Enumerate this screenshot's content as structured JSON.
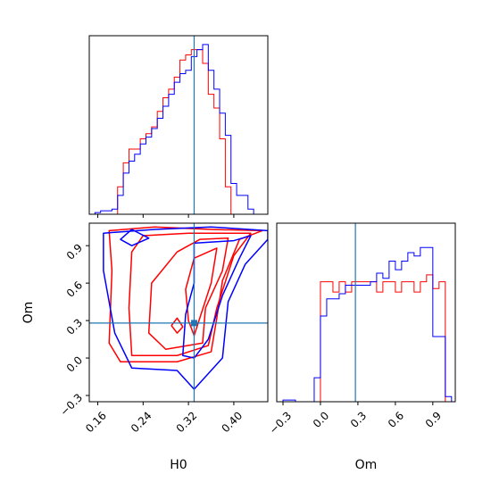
{
  "colors": {
    "series_a": "#ff0000",
    "series_b": "#0000ff",
    "truth": "#1f77b4",
    "frame": "#000000"
  },
  "chart_data": [
    {
      "type": "histogram",
      "panel": "H0 marginal",
      "position_in_grid": "top-left",
      "xlim": [
        0.145,
        0.46
      ],
      "y_ticks_shown": false,
      "truth": 0.33,
      "bin_edges": [
        0.145,
        0.155,
        0.165,
        0.175,
        0.185,
        0.195,
        0.205,
        0.215,
        0.225,
        0.235,
        0.245,
        0.255,
        0.265,
        0.275,
        0.285,
        0.295,
        0.305,
        0.315,
        0.325,
        0.335,
        0.345,
        0.355,
        0.365,
        0.375,
        0.385,
        0.395,
        0.405,
        0.415,
        0.425,
        0.435,
        0.445
      ],
      "series": [
        {
          "color_key": "series_a",
          "values": [
            0.0,
            0.0,
            0.0,
            0.0,
            0.0,
            0.16,
            0.3,
            0.38,
            0.38,
            0.44,
            0.47,
            0.51,
            0.6,
            0.68,
            0.73,
            0.8,
            0.9,
            0.93,
            0.96,
            0.96,
            0.88,
            0.7,
            0.62,
            0.44,
            0.16,
            0.0,
            0.0,
            0.0,
            0.0,
            0.0
          ]
        },
        {
          "color_key": "series_b",
          "values": [
            0.0,
            0.01,
            0.02,
            0.02,
            0.03,
            0.11,
            0.24,
            0.31,
            0.35,
            0.41,
            0.45,
            0.5,
            0.56,
            0.63,
            0.7,
            0.77,
            0.82,
            0.84,
            0.92,
            0.96,
            0.99,
            0.84,
            0.73,
            0.59,
            0.46,
            0.18,
            0.11,
            0.11,
            0.03,
            0.0
          ]
        }
      ],
      "x_tick_values": [
        0.16,
        0.24,
        0.32,
        0.4
      ],
      "x_tick_labels_shown": false
    },
    {
      "type": "contour",
      "panel": "H0 vs Om",
      "position_in_grid": "bottom-left",
      "xlabel": "H0",
      "ylabel": "Om",
      "xlim": [
        0.145,
        0.46
      ],
      "ylim": [
        -0.35,
        1.08
      ],
      "x_ticks": [
        "0.16",
        "0.24",
        "0.32",
        "0.40"
      ],
      "x_tick_values": [
        0.16,
        0.24,
        0.32,
        0.4
      ],
      "y_ticks": [
        "−0.3",
        "0.0",
        "0.3",
        "0.6",
        "0.9"
      ],
      "y_tick_values": [
        -0.3,
        0.0,
        0.3,
        0.6,
        0.9
      ],
      "truth": {
        "x": 0.33,
        "y": 0.28
      },
      "series": [
        {
          "color_key": "series_a",
          "contours": [
            [
              [
                0.18,
                1.02
              ],
              [
                0.26,
                1.05
              ],
              [
                0.36,
                1.03
              ],
              [
                0.45,
                1.02
              ],
              [
                0.41,
                0.95
              ],
              [
                0.38,
                0.62
              ],
              [
                0.37,
                0.32
              ],
              [
                0.36,
                0.05
              ],
              [
                0.3,
                -0.03
              ],
              [
                0.2,
                -0.03
              ],
              [
                0.18,
                0.12
              ],
              [
                0.185,
                0.7
              ],
              [
                0.18,
                1.02
              ]
            ],
            [
              [
                0.24,
                0.98
              ],
              [
                0.32,
                1.0
              ],
              [
                0.43,
                1.0
              ],
              [
                0.4,
                0.82
              ],
              [
                0.37,
                0.4
              ],
              [
                0.355,
                0.1
              ],
              [
                0.3,
                0.02
              ],
              [
                0.22,
                0.02
              ],
              [
                0.215,
                0.4
              ],
              [
                0.22,
                0.85
              ],
              [
                0.24,
                0.98
              ]
            ],
            [
              [
                0.34,
                0.95
              ],
              [
                0.39,
                0.96
              ],
              [
                0.38,
                0.7
              ],
              [
                0.35,
                0.4
              ],
              [
                0.345,
                0.12
              ],
              [
                0.28,
                0.07
              ],
              [
                0.25,
                0.2
              ],
              [
                0.255,
                0.6
              ],
              [
                0.3,
                0.85
              ],
              [
                0.34,
                0.95
              ]
            ],
            [
              [
                0.33,
                0.8
              ],
              [
                0.37,
                0.88
              ],
              [
                0.36,
                0.6
              ],
              [
                0.34,
                0.32
              ],
              [
                0.33,
                0.18
              ],
              [
                0.32,
                0.3
              ],
              [
                0.315,
                0.55
              ],
              [
                0.33,
                0.8
              ]
            ],
            [
              [
                0.29,
                0.26
              ],
              [
                0.3,
                0.32
              ],
              [
                0.31,
                0.25
              ],
              [
                0.3,
                0.2
              ],
              [
                0.29,
                0.26
              ]
            ]
          ]
        },
        {
          "color_key": "series_b",
          "contours": [
            [
              [
                0.17,
                1.0
              ],
              [
                0.26,
                1.03
              ],
              [
                0.36,
                1.05
              ],
              [
                0.46,
                1.02
              ],
              [
                0.46,
                0.95
              ],
              [
                0.42,
                0.75
              ],
              [
                0.39,
                0.45
              ],
              [
                0.38,
                0.0
              ],
              [
                0.33,
                -0.25
              ],
              [
                0.3,
                -0.1
              ],
              [
                0.22,
                -0.08
              ],
              [
                0.19,
                0.2
              ],
              [
                0.17,
                0.7
              ],
              [
                0.17,
                1.0
              ]
            ],
            [
              [
                0.33,
                0.92
              ],
              [
                0.4,
                0.94
              ],
              [
                0.43,
                0.98
              ],
              [
                0.41,
                0.8
              ],
              [
                0.38,
                0.5
              ],
              [
                0.355,
                0.15
              ],
              [
                0.33,
                0.0
              ],
              [
                0.31,
                0.02
              ],
              [
                0.315,
                0.35
              ],
              [
                0.33,
                0.6
              ],
              [
                0.33,
                0.92
              ]
            ],
            [
              [
                0.22,
                0.9
              ],
              [
                0.25,
                0.96
              ],
              [
                0.22,
                1.03
              ],
              [
                0.2,
                0.95
              ],
              [
                0.22,
                0.9
              ]
            ]
          ]
        }
      ]
    },
    {
      "type": "histogram",
      "panel": "Om marginal",
      "position_in_grid": "bottom-right",
      "xlabel": "Om",
      "xlim": [
        -0.35,
        1.08
      ],
      "x_ticks": [
        "−0.3",
        "0.0",
        "0.3",
        "0.6",
        "0.9"
      ],
      "x_tick_values": [
        -0.3,
        0.0,
        0.3,
        0.6,
        0.9
      ],
      "y_ticks_shown": false,
      "truth": 0.28,
      "bin_edges": [
        -0.35,
        -0.3,
        -0.25,
        -0.2,
        -0.15,
        -0.1,
        -0.05,
        0.0,
        0.05,
        0.1,
        0.15,
        0.2,
        0.25,
        0.3,
        0.35,
        0.4,
        0.45,
        0.5,
        0.55,
        0.6,
        0.65,
        0.7,
        0.75,
        0.8,
        0.85,
        0.9,
        0.95,
        1.0,
        1.05
      ],
      "series": [
        {
          "color_key": "series_a",
          "values": [
            0.0,
            0.0,
            0.0,
            0.0,
            0.0,
            0.0,
            0.0,
            0.7,
            0.7,
            0.64,
            0.7,
            0.64,
            0.7,
            0.7,
            0.7,
            0.7,
            0.64,
            0.7,
            0.7,
            0.64,
            0.7,
            0.7,
            0.64,
            0.7,
            0.74,
            0.66,
            0.7,
            0.0
          ]
        },
        {
          "color_key": "series_b",
          "values": [
            0.0,
            0.01,
            0.01,
            0.0,
            0.0,
            0.0,
            0.14,
            0.5,
            0.6,
            0.6,
            0.63,
            0.68,
            0.68,
            0.68,
            0.68,
            0.7,
            0.75,
            0.72,
            0.82,
            0.77,
            0.82,
            0.87,
            0.85,
            0.9,
            0.9,
            0.38,
            0.38,
            0.03
          ]
        }
      ]
    }
  ]
}
